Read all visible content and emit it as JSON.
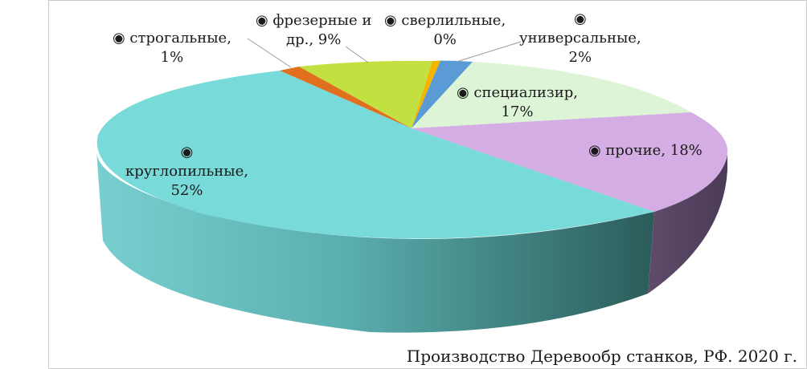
{
  "chart_data": {
    "type": "pie",
    "style": "3d",
    "caption": "Производство  Деревообр станков,  РФ. 2020 г.",
    "series": [
      {
        "name": "строгальные",
        "value": 1,
        "color": "#e0701e",
        "label_lines": [
          "◉ строгальные,",
          "1%"
        ]
      },
      {
        "name": "фрезерные и др.",
        "value": 9,
        "color": "#c2e040",
        "label_lines": [
          "◉ фрезерные и",
          "др., 9%"
        ]
      },
      {
        "name": "сверлильные",
        "value": 0,
        "color": "#f4b400",
        "label_lines": [
          "◉ сверлильные,",
          "0%"
        ]
      },
      {
        "name": "универсальные",
        "value": 2,
        "color": "#5b9bd5",
        "label_lines": [
          "◉",
          "универсальные,",
          "2%"
        ]
      },
      {
        "name": "специализир",
        "value": 17,
        "color": "#ddf4d6",
        "label_lines": [
          "◉ специализир,",
          "17%"
        ]
      },
      {
        "name": "прочие",
        "value": 18,
        "color": "#d3ade3",
        "label_lines": [
          "◉ прочие, 18%"
        ]
      },
      {
        "name": "круглопильные",
        "value": 52,
        "color": "#79dada",
        "label_lines": [
          "◉",
          "круглопильные,",
          "52%"
        ]
      }
    ],
    "legend": "none",
    "grid": false
  }
}
